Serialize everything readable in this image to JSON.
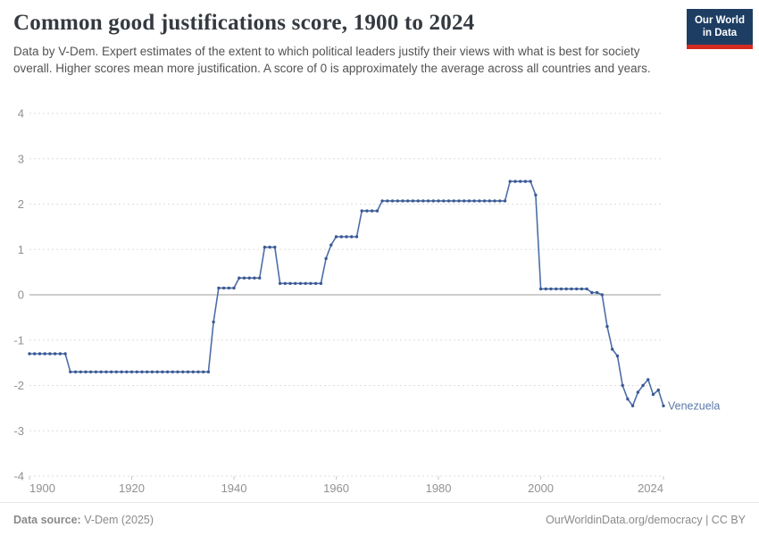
{
  "header": {
    "title": "Common good justifications score, 1900 to 2024",
    "subtitle": "Data by V-Dem. Expert estimates of the extent to which political leaders justify their views with what is best for society overall. Higher scores mean more justification. A score of 0 is approximately the average across all countries and years.",
    "logo": {
      "line1": "Our World",
      "line2": "in Data",
      "bg_color": "#1d3d63",
      "accent_color": "#d42b21"
    }
  },
  "chart_data": {
    "type": "line",
    "title": "Common good justifications score, 1900 to 2024",
    "xlabel": "",
    "ylabel": "",
    "x_start": 1900,
    "x_step": 1,
    "xlim": [
      1900,
      2024
    ],
    "ylim": [
      -4,
      4
    ],
    "x_ticks": [
      1900,
      1920,
      1940,
      1960,
      1980,
      2000,
      2024
    ],
    "y_ticks": [
      4,
      3,
      2,
      1,
      0,
      -1,
      -2,
      -3,
      -4
    ],
    "grid": "horizontal dashed gridlines, solid gray zero line",
    "legend_position": "end-of-line label",
    "colors": {
      "gridline": "#dedede",
      "zero_line": "#9e9e9e",
      "tick_label": "#919191",
      "end_label": "#5b79a8"
    },
    "series": [
      {
        "name": "Venezuela",
        "color": "#4c6ea8",
        "marker_color": "#3a5894",
        "values": [
          -1.3,
          -1.3,
          -1.3,
          -1.3,
          -1.3,
          -1.3,
          -1.3,
          -1.3,
          -1.7,
          -1.7,
          -1.7,
          -1.7,
          -1.7,
          -1.7,
          -1.7,
          -1.7,
          -1.7,
          -1.7,
          -1.7,
          -1.7,
          -1.7,
          -1.7,
          -1.7,
          -1.7,
          -1.7,
          -1.7,
          -1.7,
          -1.7,
          -1.7,
          -1.7,
          -1.7,
          -1.7,
          -1.7,
          -1.7,
          -1.7,
          -1.7,
          -0.6,
          0.15,
          0.15,
          0.15,
          0.15,
          0.37,
          0.37,
          0.37,
          0.37,
          0.37,
          1.05,
          1.05,
          1.05,
          0.25,
          0.25,
          0.25,
          0.25,
          0.25,
          0.25,
          0.25,
          0.25,
          0.25,
          0.8,
          1.1,
          1.28,
          1.28,
          1.28,
          1.28,
          1.28,
          1.85,
          1.85,
          1.85,
          1.85,
          2.07,
          2.07,
          2.07,
          2.07,
          2.07,
          2.07,
          2.07,
          2.07,
          2.07,
          2.07,
          2.07,
          2.07,
          2.07,
          2.07,
          2.07,
          2.07,
          2.07,
          2.07,
          2.07,
          2.07,
          2.07,
          2.07,
          2.07,
          2.07,
          2.07,
          2.5,
          2.5,
          2.5,
          2.5,
          2.5,
          2.2,
          0.13,
          0.13,
          0.13,
          0.13,
          0.13,
          0.13,
          0.13,
          0.13,
          0.13,
          0.13,
          0.05,
          0.05,
          0,
          -0.7,
          -1.2,
          -1.35,
          -2.0,
          -2.3,
          -2.45,
          -2.15,
          -2.0,
          -1.87,
          -2.2,
          -2.1,
          -2.45
        ]
      }
    ]
  },
  "footer": {
    "source_label": "Data source:",
    "source_value": " V-Dem (2025)",
    "credit_url": "OurWorldinData.org/democracy",
    "credit_license": " | CC BY"
  }
}
